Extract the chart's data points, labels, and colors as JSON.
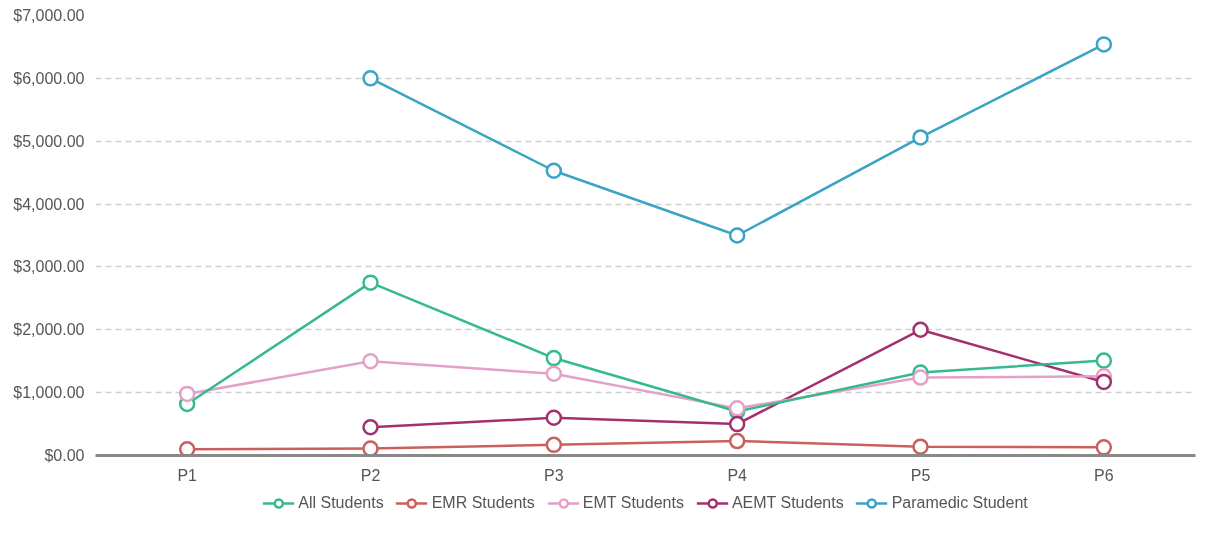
{
  "chart_data": {
    "type": "line",
    "categories": [
      "P1",
      "P2",
      "P3",
      "P4",
      "P5",
      "P6"
    ],
    "series": [
      {
        "name": "All Students",
        "color": "#36b98f",
        "values": [
          820,
          2750,
          1550,
          700,
          1320,
          1510
        ]
      },
      {
        "name": "EMR Students",
        "color": "#c9605d",
        "values": [
          100,
          110,
          170,
          230,
          140,
          130
        ]
      },
      {
        "name": "EMT Students",
        "color": "#e3a1c7",
        "values": [
          980,
          1500,
          1300,
          750,
          1240,
          1260
        ]
      },
      {
        "name": "AEMT Students",
        "color": "#a2306e",
        "values": [
          null,
          450,
          600,
          500,
          2000,
          1170
        ]
      },
      {
        "name": "Paramedic Student",
        "color": "#3aa3c6",
        "values": [
          null,
          6000,
          4530,
          3500,
          5060,
          6540
        ]
      }
    ],
    "ylim": [
      0,
      7000
    ],
    "yticks": [
      {
        "value": 0,
        "label": "$0.00"
      },
      {
        "value": 1000,
        "label": "$1,000.00"
      },
      {
        "value": 2000,
        "label": "$2,000.00"
      },
      {
        "value": 3000,
        "label": "$3,000.00"
      },
      {
        "value": 4000,
        "label": "$4,000.00"
      },
      {
        "value": 5000,
        "label": "$5,000.00"
      },
      {
        "value": 6000,
        "label": "$6,000.00"
      },
      {
        "value": 7000,
        "label": "$7,000.00"
      }
    ],
    "grid": "y",
    "legend": "bottom",
    "marker": "circle",
    "line_style": "solid"
  }
}
